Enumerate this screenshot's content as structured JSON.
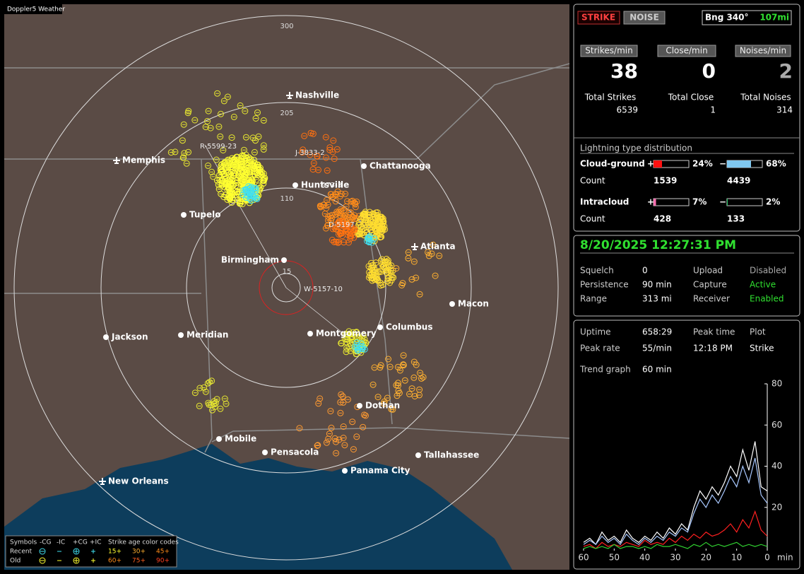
{
  "app_title": "Doppler5 Weather",
  "map": {
    "range_labels": [
      "300",
      "205",
      "110",
      "15"
    ],
    "cities": [
      "Nashville",
      "Memphis",
      "Chattanooga",
      "Huntsville",
      "Tupelo",
      "Atlanta",
      "Birmingham",
      "Macon",
      "Jackson",
      "Meridian",
      "Montgomery",
      "Columbus",
      "Dothan",
      "Mobile",
      "Pensacola",
      "Tallahassee",
      "Panama City",
      "New Orleans"
    ],
    "storm_labels": [
      "R-5599-23",
      "J-3833-2",
      "973-3",
      "D-5197",
      "W-5157-10"
    ]
  },
  "legend": {
    "headers": [
      "Symbols",
      "-CG",
      "-IC",
      "+CG",
      "+IC",
      "Strike age color codes"
    ],
    "rows": [
      {
        "label": "Recent",
        "ages": [
          "15+",
          "30+",
          "45+"
        ]
      },
      {
        "label": "Old",
        "ages": [
          "60+",
          "75+",
          "90+"
        ]
      }
    ]
  },
  "panel": {
    "buttons": [
      "STRIKE",
      "NOISE"
    ],
    "bearing": "Bng 340°",
    "distance": "107mi",
    "rates": [
      {
        "label": "Strikes/min",
        "value": 38,
        "total_label": "Total Strikes",
        "total": 6539
      },
      {
        "label": "Close/min",
        "value": 0,
        "total_label": "Total Close",
        "total": 1
      },
      {
        "label": "Noises/min",
        "value": 2,
        "total_label": "Total Noises",
        "total": 314
      }
    ],
    "distribution": {
      "title": "Lightning type distribution",
      "count_label": "Count",
      "plus": "+",
      "minus": "−",
      "rows": [
        {
          "label": "Cloud-ground",
          "plus_pct": {
            "value": 24,
            "label": "24%"
          },
          "minus_pct": {
            "value": 68,
            "label": "68%"
          },
          "plus_count": 1539,
          "minus_count": 4439
        },
        {
          "label": "Intracloud",
          "plus_pct": {
            "value": 7,
            "label": "7%"
          },
          "minus_pct": {
            "value": 2,
            "label": "2%"
          },
          "plus_count": 428,
          "minus_count": 133
        }
      ]
    }
  },
  "status": {
    "datetime": "8/20/2025 12:27:31 PM",
    "fields": [
      {
        "label": "Squelch",
        "value": "0"
      },
      {
        "label": "Upload",
        "value": "Disabled"
      },
      {
        "label": "Persistence",
        "value": "90 min"
      },
      {
        "label": "Capture",
        "value": "Active"
      },
      {
        "label": "Range",
        "value": "313 mi"
      },
      {
        "label": "Receiver",
        "value": "Enabled"
      }
    ]
  },
  "stats": {
    "fields": [
      {
        "label": "Uptime",
        "value": "658:29"
      },
      {
        "label": "Peak time",
        "value": "12:18 PM"
      },
      {
        "label": "Plot",
        "value": "Strike"
      },
      {
        "label": "Peak rate",
        "value": "55/min"
      }
    ],
    "trend_label": "Trend graph",
    "trend_value": "60 min"
  },
  "chart_data": {
    "type": "line",
    "x": [
      60,
      58,
      56,
      54,
      52,
      50,
      48,
      46,
      44,
      42,
      40,
      38,
      36,
      34,
      32,
      30,
      28,
      26,
      24,
      22,
      20,
      18,
      16,
      14,
      12,
      10,
      8,
      6,
      4,
      2,
      0
    ],
    "xlim": [
      60,
      0
    ],
    "xticks": [
      60,
      50,
      40,
      30,
      20,
      10,
      0
    ],
    "x_unit": "min",
    "ylim": [
      0,
      80
    ],
    "yticks": [
      20,
      40,
      60,
      80
    ],
    "series": [
      {
        "color": "#ffffff",
        "values": [
          3,
          5,
          2,
          8,
          4,
          6,
          3,
          9,
          5,
          3,
          6,
          4,
          8,
          5,
          10,
          7,
          12,
          9,
          20,
          28,
          24,
          30,
          26,
          32,
          40,
          35,
          48,
          38,
          52,
          30,
          28
        ]
      },
      {
        "color": "#a8c8ff",
        "values": [
          2,
          4,
          2,
          6,
          3,
          5,
          2,
          7,
          4,
          2,
          5,
          3,
          6,
          4,
          8,
          6,
          10,
          8,
          17,
          24,
          20,
          26,
          22,
          28,
          35,
          30,
          40,
          32,
          44,
          26,
          22
        ]
      },
      {
        "color": "#ff2020",
        "values": [
          1,
          2,
          0,
          3,
          1,
          2,
          1,
          3,
          2,
          1,
          4,
          2,
          3,
          2,
          5,
          3,
          6,
          4,
          7,
          5,
          8,
          6,
          7,
          9,
          12,
          8,
          14,
          10,
          18,
          9,
          6
        ]
      },
      {
        "color": "#30d030",
        "values": [
          0,
          1,
          0,
          1,
          0,
          2,
          0,
          1,
          1,
          0,
          1,
          0,
          2,
          1,
          1,
          2,
          1,
          0,
          2,
          1,
          3,
          1,
          2,
          1,
          2,
          3,
          1,
          2,
          1,
          2,
          1
        ]
      }
    ]
  }
}
